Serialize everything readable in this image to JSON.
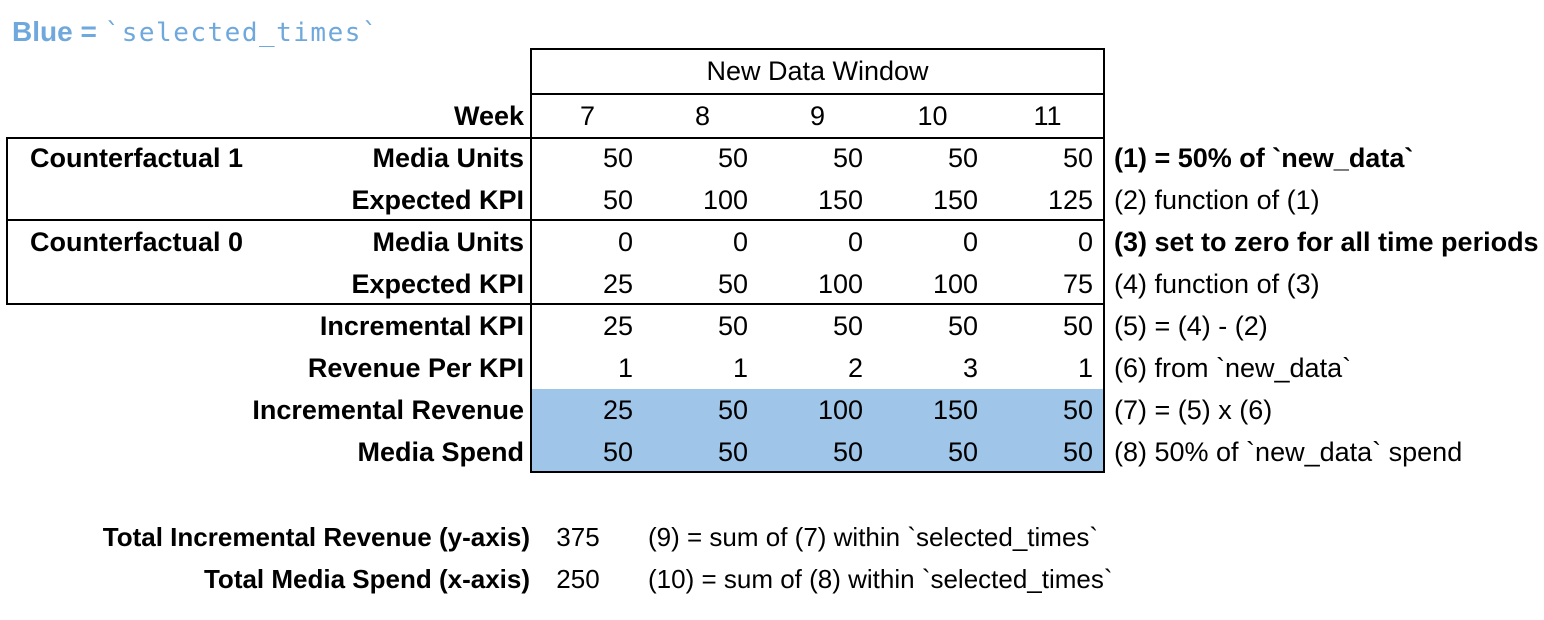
{
  "legend": {
    "blue_label": "Blue =",
    "blue_value": "`selected_times`"
  },
  "table": {
    "header": "New Data Window",
    "week_label": "Week",
    "weeks": [
      "7",
      "8",
      "9",
      "10",
      "11"
    ],
    "groups": [
      {
        "label": "Counterfactual 1"
      },
      {
        "label": "Counterfactual 0"
      }
    ],
    "rows": [
      {
        "group": "Counterfactual 1",
        "label": "Media Units",
        "values": [
          "50",
          "50",
          "50",
          "50",
          "50"
        ],
        "annotation": "(1) = 50% of `new_data`",
        "annotation_bold": true,
        "highlight": false
      },
      {
        "label": "Expected KPI",
        "values": [
          "50",
          "100",
          "150",
          "150",
          "125"
        ],
        "annotation": "(2) function of (1)",
        "annotation_bold": false,
        "highlight": false
      },
      {
        "group": "Counterfactual 0",
        "label": "Media Units",
        "values": [
          "0",
          "0",
          "0",
          "0",
          "0"
        ],
        "annotation": "(3) set to zero for all time periods",
        "annotation_bold": true,
        "highlight": false
      },
      {
        "label": "Expected KPI",
        "values": [
          "25",
          "50",
          "100",
          "100",
          "75"
        ],
        "annotation": "(4) function of (3)",
        "annotation_bold": false,
        "highlight": false
      },
      {
        "label": "Incremental KPI",
        "values": [
          "25",
          "50",
          "50",
          "50",
          "50"
        ],
        "annotation": "(5) = (4) - (2)",
        "annotation_bold": false,
        "highlight": false
      },
      {
        "label": "Revenue Per KPI",
        "values": [
          "1",
          "1",
          "2",
          "3",
          "1"
        ],
        "annotation": "(6) from `new_data`",
        "annotation_bold": false,
        "highlight": false
      },
      {
        "label": "Incremental Revenue",
        "values": [
          "25",
          "50",
          "100",
          "150",
          "50"
        ],
        "annotation": "(7) = (5) x (6)",
        "annotation_bold": false,
        "highlight": true
      },
      {
        "label": "Media Spend",
        "values": [
          "50",
          "50",
          "50",
          "50",
          "50"
        ],
        "annotation": "(8) 50% of `new_data` spend",
        "annotation_bold": false,
        "highlight": true
      }
    ]
  },
  "totals": [
    {
      "label": "Total Incremental Revenue (y-axis)",
      "value": "375",
      "annotation": "(9) = sum of (7) within `selected_times`"
    },
    {
      "label": "Total Media Spend (x-axis)",
      "value": "250",
      "annotation": "(10) = sum of (8) within `selected_times`"
    }
  ],
  "colors": {
    "highlight": "#9FC5E8",
    "legend_text": "#6FA8DC",
    "border": "#000000"
  }
}
